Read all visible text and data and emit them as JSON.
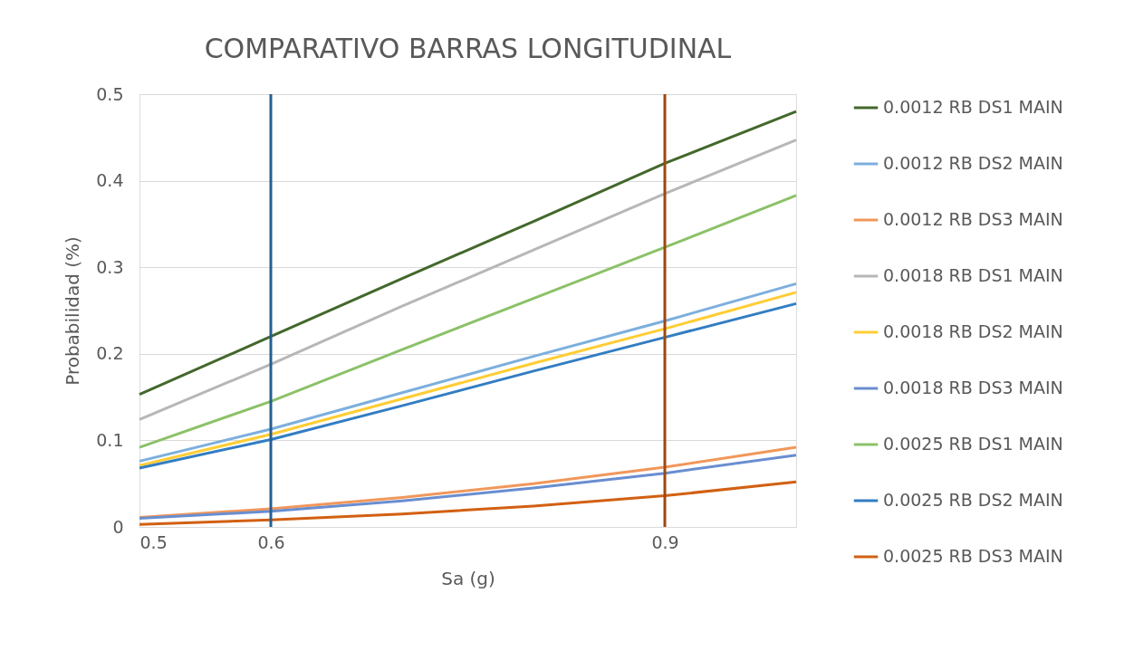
{
  "chart_data": {
    "type": "line",
    "title": "COMPARATIVO BARRAS LONGITUDINAL",
    "xlabel": "Sa (g)",
    "ylabel": "Probabilidad (%)",
    "x": [
      0.5,
      0.6,
      0.7,
      0.8,
      0.9,
      1.0
    ],
    "series": [
      {
        "name": "0.0012 RB DS1 MAIN",
        "color": "#43682b",
        "values": [
          0.153,
          0.22,
          0.287,
          0.353,
          0.42,
          0.48
        ]
      },
      {
        "name": "0.0012 RB DS2 MAIN",
        "color": "#7cafdd",
        "values": [
          0.076,
          0.113,
          0.155,
          0.197,
          0.238,
          0.281
        ]
      },
      {
        "name": "0.0012 RB DS3 MAIN",
        "color": "#f1975a",
        "values": [
          0.011,
          0.021,
          0.034,
          0.05,
          0.069,
          0.092
        ]
      },
      {
        "name": "0.0018 RB DS1 MAIN",
        "color": "#b7b7b7",
        "values": [
          0.124,
          0.188,
          0.255,
          0.32,
          0.385,
          0.447
        ]
      },
      {
        "name": "0.0018 RB DS2 MAIN",
        "color": "#ffcd33",
        "values": [
          0.071,
          0.107,
          0.148,
          0.189,
          0.229,
          0.271
        ]
      },
      {
        "name": "0.0018 RB DS3 MAIN",
        "color": "#698ed0",
        "values": [
          0.01,
          0.018,
          0.03,
          0.045,
          0.062,
          0.083
        ]
      },
      {
        "name": "0.0025 RB DS1 MAIN",
        "color": "#8cc168",
        "values": [
          0.092,
          0.145,
          0.205,
          0.264,
          0.323,
          0.383
        ]
      },
      {
        "name": "0.0025 RB DS2 MAIN",
        "color": "#327dc2",
        "values": [
          0.068,
          0.101,
          0.14,
          0.18,
          0.219,
          0.258
        ]
      },
      {
        "name": "0.0025 RB DS3 MAIN",
        "color": "#d26012",
        "values": [
          0.003,
          0.008,
          0.015,
          0.024,
          0.036,
          0.052
        ]
      }
    ],
    "xlim": [
      0.5,
      1.0
    ],
    "xticks": [
      0.5,
      0.6,
      0.9
    ],
    "ylim": [
      0,
      0.5
    ],
    "yticks": [
      0,
      0.1,
      0.2,
      0.3,
      0.4,
      0.5
    ],
    "ref_lines": [
      {
        "axis": "x",
        "value": 0.6,
        "color": "#255e91"
      },
      {
        "axis": "x",
        "value": 0.9,
        "color": "#9e480e"
      }
    ],
    "grid": "y",
    "legend": "right",
    "marker": "none",
    "line_style": "solid"
  }
}
